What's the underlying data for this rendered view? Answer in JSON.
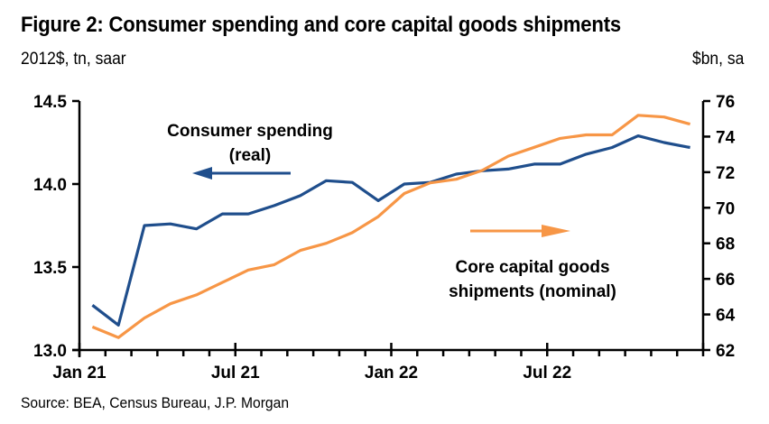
{
  "header": {
    "title": "Figure 2: Consumer spending and core capital goods shipments",
    "unit_left": "2012$, tn, saar",
    "unit_right": "$bn, sa"
  },
  "footer": {
    "source": "Source: BEA, Census Bureau, J.P. Morgan"
  },
  "chart_data": {
    "type": "line",
    "title": "Figure 2: Consumer spending and core capital goods shipments",
    "xlabel": "",
    "ylabel_left": "2012$, tn, saar",
    "ylabel_right": "$bn, sa",
    "x": [
      "Jan 21",
      "Feb 21",
      "Mar 21",
      "Apr 21",
      "May 21",
      "Jun 21",
      "Jul 21",
      "Aug 21",
      "Sep 21",
      "Oct 21",
      "Nov 21",
      "Dec 21",
      "Jan 22",
      "Feb 22",
      "Mar 22",
      "Apr 22",
      "May 22",
      "Jun 22",
      "Jul 22",
      "Aug 22",
      "Sep 22",
      "Oct 22",
      "Nov 22",
      "Dec 22"
    ],
    "x_tick_labels": [
      "Jan 21",
      "Jul 21",
      "Jan 22",
      "Jul 22"
    ],
    "y_left": {
      "range": [
        13.0,
        14.5
      ],
      "ticks": [
        "13.0",
        "13.5",
        "14.0",
        "14.5"
      ]
    },
    "y_right": {
      "range": [
        62,
        76
      ],
      "ticks": [
        "62",
        "64",
        "66",
        "68",
        "70",
        "72",
        "74",
        "76"
      ]
    },
    "grid": false,
    "series": [
      {
        "name": "Consumer spending (real)",
        "axis": "left",
        "color": "#1F4E8C",
        "values": [
          13.27,
          13.15,
          13.75,
          13.76,
          13.73,
          13.82,
          13.82,
          13.87,
          13.93,
          14.02,
          14.01,
          13.9,
          14.0,
          14.01,
          14.06,
          14.08,
          14.09,
          14.12,
          14.12,
          14.18,
          14.22,
          14.29,
          14.25,
          14.22
        ]
      },
      {
        "name": "Core capital goods shipments (nominal)",
        "axis": "right",
        "color": "#F79646",
        "values": [
          63.3,
          62.7,
          63.8,
          64.6,
          65.1,
          65.8,
          66.5,
          66.8,
          67.6,
          68.0,
          68.6,
          69.5,
          70.8,
          71.4,
          71.6,
          72.1,
          72.9,
          73.4,
          73.9,
          74.1,
          74.1,
          75.2,
          75.1,
          74.7
        ]
      }
    ],
    "annotations": [
      {
        "text_lines": [
          "Consumer spending",
          "(real)"
        ],
        "arrow": "left",
        "series": "Consumer spending (real)"
      },
      {
        "text_lines": [
          "Core capital goods",
          "shipments (nominal)"
        ],
        "arrow": "right",
        "series": "Core capital goods shipments (nominal)"
      }
    ],
    "legend": "none (inline annotations)"
  }
}
